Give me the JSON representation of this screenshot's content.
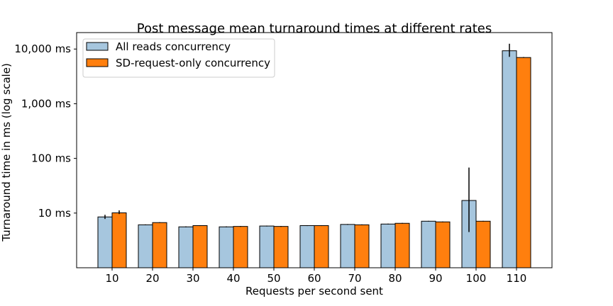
{
  "chart_data": {
    "type": "bar",
    "title": "Post message mean turnaround times at different rates",
    "xlabel": "Requests per second sent",
    "ylabel": "Turnaround time in ms (log scale)",
    "yscale": "log",
    "ylim": [
      1,
      20000
    ],
    "yticks": [
      {
        "value": 10,
        "label": "10 ms"
      },
      {
        "value": 100,
        "label": "100 ms"
      },
      {
        "value": 1000,
        "label": "1,000 ms"
      },
      {
        "value": 10000,
        "label": "10,000 ms"
      }
    ],
    "categories": [
      "10",
      "20",
      "30",
      "40",
      "50",
      "60",
      "70",
      "80",
      "90",
      "100",
      "110"
    ],
    "series": [
      {
        "name": "All reads concurrency",
        "color": "#a6c6de",
        "values": [
          8.5,
          6.1,
          5.6,
          5.6,
          5.8,
          5.9,
          6.2,
          6.3,
          7.1,
          17.0,
          9300
        ],
        "err_low": [
          7.8,
          6.0,
          5.5,
          5.5,
          5.7,
          5.8,
          6.1,
          6.2,
          7.0,
          4.5,
          7200
        ],
        "err_high": [
          9.3,
          6.2,
          5.7,
          5.7,
          5.9,
          6.0,
          6.3,
          6.4,
          7.2,
          68.0,
          12500
        ]
      },
      {
        "name": "SD-request-only concurrency",
        "color": "#ff7f0e",
        "values": [
          10.1,
          6.7,
          5.9,
          5.7,
          5.7,
          5.9,
          6.1,
          6.5,
          6.9,
          7.1,
          7000
        ],
        "err_low": [
          9.6,
          6.6,
          5.8,
          5.6,
          5.6,
          5.8,
          6.0,
          6.4,
          6.8,
          7.0,
          6900
        ],
        "err_high": [
          11.2,
          6.8,
          6.0,
          5.8,
          5.8,
          6.0,
          6.2,
          6.6,
          7.0,
          7.2,
          7150
        ]
      }
    ],
    "legend_position": "top-left",
    "grid": false
  }
}
